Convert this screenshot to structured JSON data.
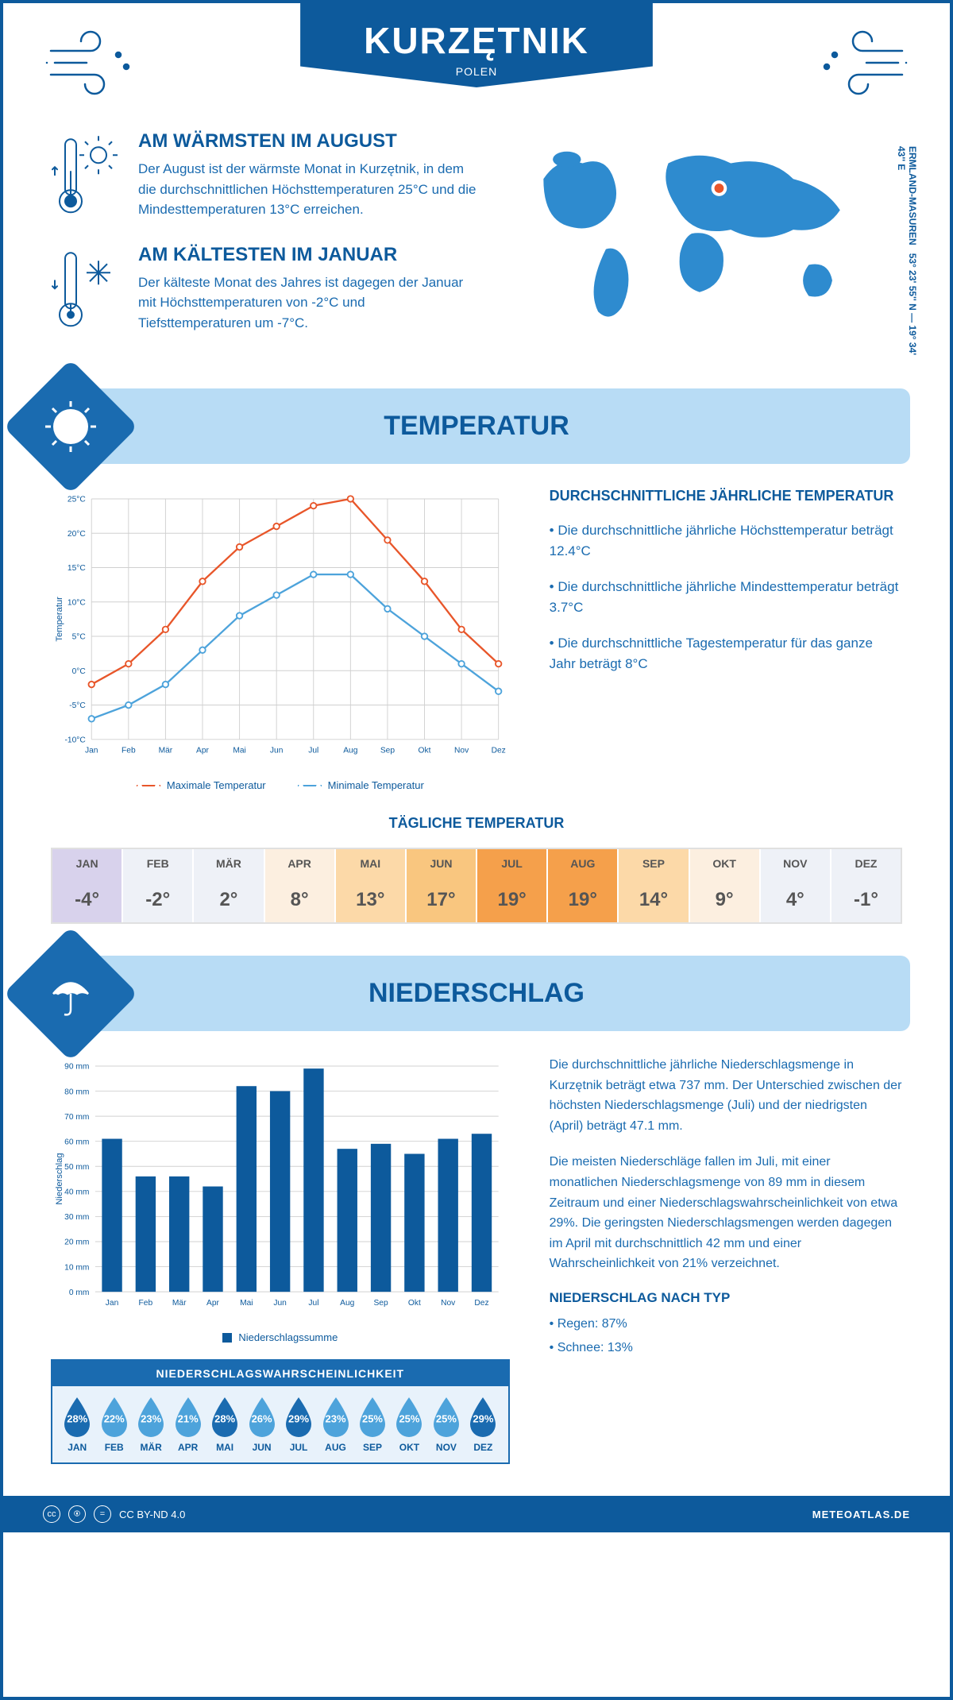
{
  "header": {
    "city": "KURZĘTNIK",
    "country": "POLEN",
    "coords": "53° 23' 55'' N — 19° 34' 43'' E",
    "region": "ERMLAND-MASUREN"
  },
  "facts": {
    "warm": {
      "title": "AM WÄRMSTEN IM AUGUST",
      "text": "Der August ist der wärmste Monat in Kurzętnik, in dem die durchschnittlichen Höchsttemperaturen 25°C und die Mindesttemperaturen 13°C erreichen."
    },
    "cold": {
      "title": "AM KÄLTESTEN IM JANUAR",
      "text": "Der kälteste Monat des Jahres ist dagegen der Januar mit Höchsttemperaturen von -2°C und Tiefsttemperaturen um -7°C."
    }
  },
  "temp_section": {
    "title": "TEMPERATUR",
    "info_title": "DURCHSCHNITTLICHE JÄHRLICHE TEMPERATUR",
    "bullets": [
      "• Die durchschnittliche jährliche Höchsttemperatur beträgt 12.4°C",
      "• Die durchschnittliche jährliche Mindesttemperatur beträgt 3.7°C",
      "• Die durchschnittliche Tagestemperatur für das ganze Jahr beträgt 8°C"
    ],
    "chart": {
      "type": "line",
      "months": [
        "Jan",
        "Feb",
        "Mär",
        "Apr",
        "Mai",
        "Jun",
        "Jul",
        "Aug",
        "Sep",
        "Okt",
        "Nov",
        "Dez"
      ],
      "max_temp": [
        -2,
        1,
        6,
        13,
        18,
        21,
        24,
        25,
        19,
        13,
        6,
        1
      ],
      "min_temp": [
        -7,
        -5,
        -2,
        3,
        8,
        11,
        14,
        14,
        9,
        5,
        1,
        -3
      ],
      "ylim": [
        -10,
        25
      ],
      "ytick_step": 5,
      "max_color": "#e8562a",
      "min_color": "#4da3db",
      "grid_color": "#d0d0d0",
      "line_width": 2.5,
      "marker_size": 4,
      "ylabel": "Temperatur",
      "legend_max": "Maximale Temperatur",
      "legend_min": "Minimale Temperatur"
    }
  },
  "daily": {
    "title": "TÄGLICHE TEMPERATUR",
    "months": [
      "JAN",
      "FEB",
      "MÄR",
      "APR",
      "MAI",
      "JUN",
      "JUL",
      "AUG",
      "SEP",
      "OKT",
      "NOV",
      "DEZ"
    ],
    "values": [
      "-4°",
      "-2°",
      "2°",
      "8°",
      "13°",
      "17°",
      "19°",
      "19°",
      "14°",
      "9°",
      "4°",
      "-1°"
    ],
    "cell_colors": [
      "#d8d2ec",
      "#eef1f7",
      "#eef1f7",
      "#fcefe0",
      "#fcd9a8",
      "#f9c67f",
      "#f5a04b",
      "#f5a04b",
      "#fcd9a8",
      "#fcefe0",
      "#eef1f7",
      "#eef1f7"
    ]
  },
  "precip_section": {
    "title": "NIEDERSCHLAG",
    "chart": {
      "type": "bar",
      "months": [
        "Jan",
        "Feb",
        "Mär",
        "Apr",
        "Mai",
        "Jun",
        "Jul",
        "Aug",
        "Sep",
        "Okt",
        "Nov",
        "Dez"
      ],
      "values": [
        61,
        46,
        46,
        42,
        82,
        80,
        89,
        57,
        59,
        55,
        61,
        63
      ],
      "ylim": [
        0,
        90
      ],
      "ytick_step": 10,
      "bar_color": "#0d5a9c",
      "grid_color": "#d0d0d0",
      "ylabel": "Niederschlag",
      "legend": "Niederschlagssumme"
    },
    "para1": "Die durchschnittliche jährliche Niederschlagsmenge in Kurzętnik beträgt etwa 737 mm. Der Unterschied zwischen der höchsten Niederschlagsmenge (Juli) und der niedrigsten (April) beträgt 47.1 mm.",
    "para2": "Die meisten Niederschläge fallen im Juli, mit einer monatlichen Niederschlagsmenge von 89 mm in diesem Zeitraum und einer Niederschlagswahrscheinlichkeit von etwa 29%. Die geringsten Niederschlagsmengen werden dagegen im April mit durchschnittlich 42 mm und einer Wahrscheinlichkeit von 21% verzeichnet.",
    "type_title": "NIEDERSCHLAG NACH TYP",
    "type_rain": "• Regen: 87%",
    "type_snow": "• Schnee: 13%",
    "prob": {
      "title": "NIEDERSCHLAGSWAHRSCHEINLICHKEIT",
      "months": [
        "JAN",
        "FEB",
        "MÄR",
        "APR",
        "MAI",
        "JUN",
        "JUL",
        "AUG",
        "SEP",
        "OKT",
        "NOV",
        "DEZ"
      ],
      "values": [
        "28%",
        "22%",
        "23%",
        "21%",
        "28%",
        "26%",
        "29%",
        "23%",
        "25%",
        "25%",
        "25%",
        "29%"
      ],
      "drop_colors": [
        "#1a6bb0",
        "#4da3db",
        "#4da3db",
        "#4da3db",
        "#1a6bb0",
        "#4da3db",
        "#1a6bb0",
        "#4da3db",
        "#4da3db",
        "#4da3db",
        "#4da3db",
        "#1a6bb0"
      ]
    }
  },
  "footer": {
    "license": "CC BY-ND 4.0",
    "site": "METEOATLAS.DE"
  }
}
